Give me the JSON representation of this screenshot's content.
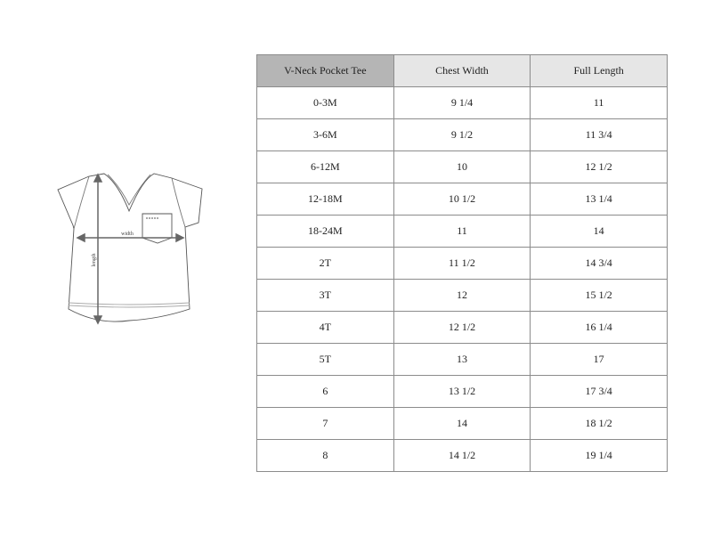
{
  "illustration": {
    "width_label": "width",
    "length_label": "length"
  },
  "table": {
    "headers": [
      "V-Neck Pocket Tee",
      "Chest Width",
      "Full Length"
    ],
    "rows": [
      [
        "0-3M",
        "9 1/4",
        "11"
      ],
      [
        "3-6M",
        "9 1/2",
        "11 3/4"
      ],
      [
        "6-12M",
        "10",
        "12 1/2"
      ],
      [
        "12-18M",
        "10 1/2",
        "13 1/4"
      ],
      [
        "18-24M",
        "11",
        "14"
      ],
      [
        "2T",
        "11 1/2",
        "14 3/4"
      ],
      [
        "3T",
        "12",
        "15 1/2"
      ],
      [
        "4T",
        "12 1/2",
        "16 1/4"
      ],
      [
        "5T",
        "13",
        "17"
      ],
      [
        "6",
        "13 1/2",
        "17 3/4"
      ],
      [
        "7",
        "14",
        "18 1/2"
      ],
      [
        "8",
        "14 1/2",
        "19 1/4"
      ]
    ]
  },
  "colors": {
    "header_first": "#b5b5b5",
    "header": "#e6e6e6",
    "border": "#8c8c8c"
  }
}
